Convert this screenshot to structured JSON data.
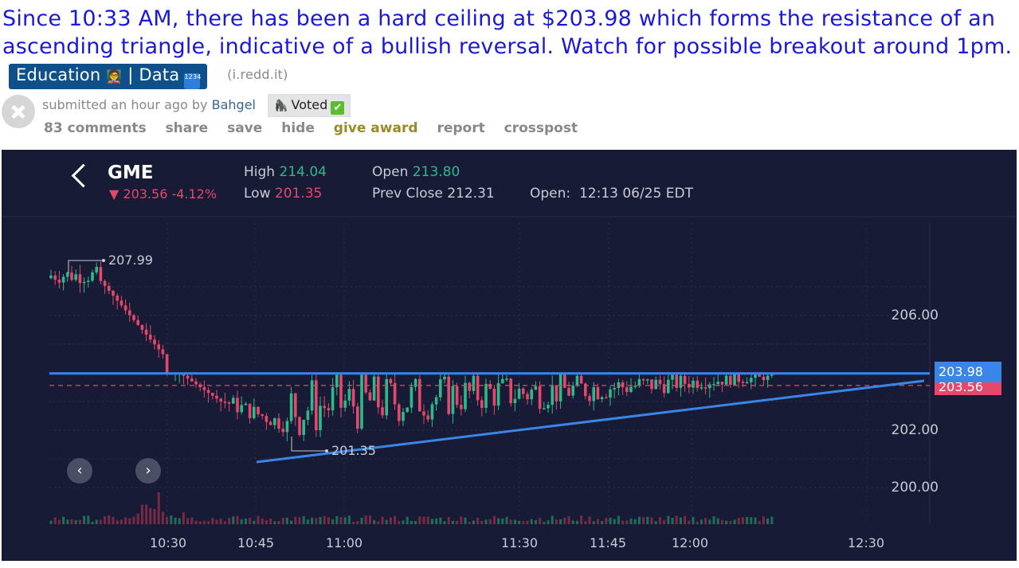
{
  "post": {
    "title": "Since 10:33 AM, there has been a hard ceiling at $203.98 which forms the resistance of an ascending triangle, indicative of a bullish reversal. Watch for possible breakout around 1pm.",
    "flair": "Education",
    "flair_emoji": "🧑‍🏫",
    "flair_sep": "| Data",
    "flair_num": "1234",
    "domain": "(i.redd.it)",
    "tagline_prefix": "submitted an hour ago by",
    "author": "Bahgel",
    "user_flair": "Voted",
    "user_flair_emoji": "🦍",
    "user_flair_check": "✔",
    "buttons": {
      "comments": "83 comments",
      "share": "share",
      "save": "save",
      "hide": "hide",
      "award": "give award",
      "report": "report",
      "crosspost": "crosspost"
    }
  },
  "chart_header": {
    "symbol": "GME",
    "change": "▼ 203.56 -4.12%",
    "high_label": "High",
    "high_value": "214.04",
    "low_label": "Low",
    "low_value": "201.35",
    "open_label": "Open",
    "open_value": "213.80",
    "prev_close_label": "Prev Close",
    "prev_close_value": "212.31",
    "session_label": "Open:",
    "session_value": "12:13 06/25 EDT"
  },
  "chart_data": {
    "type": "candlestick",
    "ticker": "GME",
    "y_ticks": [
      "206.00",
      "202.00",
      "200.00"
    ],
    "x_ticks": [
      "10:30",
      "10:45",
      "11:00",
      "11:30",
      "11:45",
      "12:00",
      "12:30"
    ],
    "annotations": {
      "high": "207.99",
      "low": "201.35"
    },
    "resistance": 203.98,
    "last_price": "203.56",
    "resistance_label": "203.98",
    "ylim": [
      199.4,
      208.9
    ],
    "grid": true,
    "colors": {
      "up": "#2fb98a",
      "down": "#e5486a",
      "trendline": "#3a86e6",
      "background": "#171b36"
    }
  },
  "nav": {
    "prev": "‹",
    "next": "›"
  }
}
